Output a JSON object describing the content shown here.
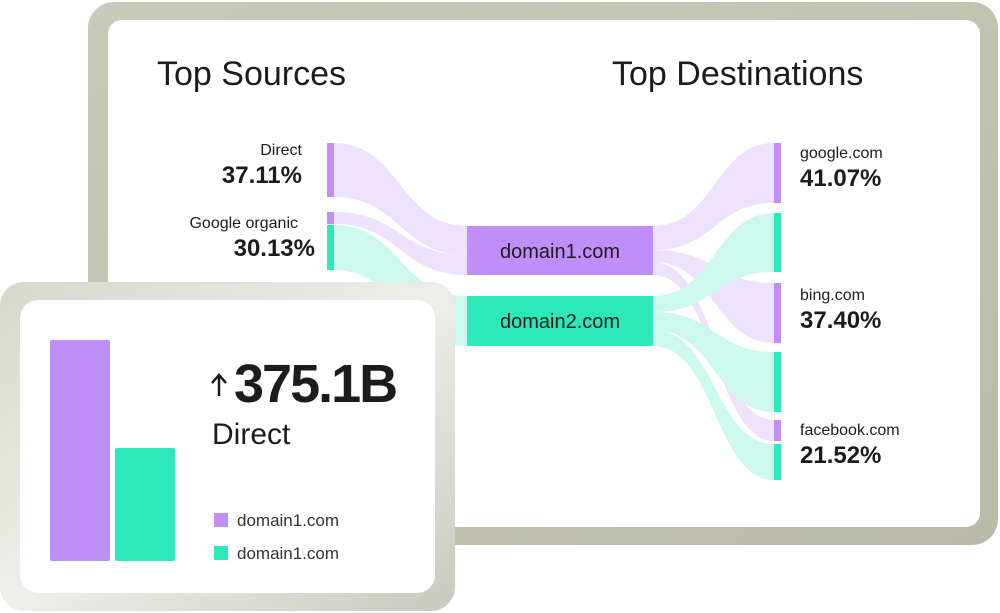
{
  "sources_panel": {
    "title_left": "Top Sources",
    "title_right": "Top Destinations",
    "sources": [
      {
        "label": "Direct",
        "value": "37.11%"
      },
      {
        "label": "Google organic",
        "value": "30.13%"
      }
    ],
    "domains": [
      "domain1.com",
      "domain2.com"
    ],
    "destinations": [
      {
        "label": "google.com",
        "value": "41.07%"
      },
      {
        "label": "bing.com",
        "value": "37.40%"
      },
      {
        "label": "facebook.com",
        "value": "21.52%"
      }
    ]
  },
  "stat_card": {
    "value": "375.1B",
    "label": "Direct",
    "legend": [
      "domain1.com",
      "domain1.com"
    ]
  }
}
